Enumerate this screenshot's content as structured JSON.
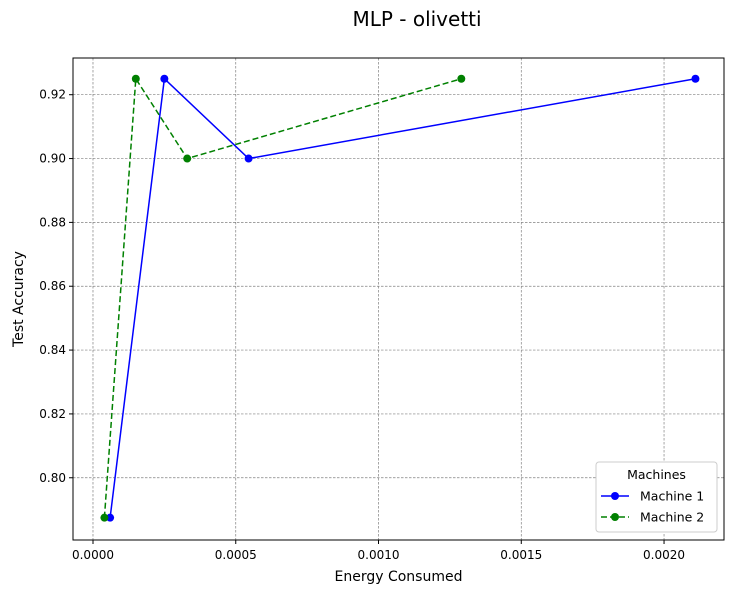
{
  "chart_data": {
    "type": "line",
    "title": "MLP - olivetti",
    "xlabel": "Energy Consumed",
    "ylabel": "Test Accuracy",
    "xlim": [
      -7e-05,
      0.00221
    ],
    "ylim": [
      0.7805,
      0.9315
    ],
    "xticks": [
      0.0,
      0.0005,
      0.001,
      0.0015,
      0.002
    ],
    "xtick_labels": [
      "0.0000",
      "0.0005",
      "0.0010",
      "0.0015",
      "0.0020"
    ],
    "yticks": [
      0.8,
      0.82,
      0.84,
      0.86,
      0.88,
      0.9,
      0.92
    ],
    "ytick_labels": [
      "0.80",
      "0.82",
      "0.84",
      "0.86",
      "0.88",
      "0.90",
      "0.92"
    ],
    "grid": true,
    "legend": {
      "title": "Machines",
      "position": "lower-right"
    },
    "series": [
      {
        "name": "Machine 1",
        "color": "#0000ff",
        "linestyle": "solid",
        "marker": "circle",
        "x": [
          6e-05,
          0.00025,
          0.000545,
          0.00211
        ],
        "y": [
          0.7875,
          0.925,
          0.9,
          0.925
        ]
      },
      {
        "name": "Machine 2",
        "color": "#008000",
        "linestyle": "dashed",
        "marker": "circle",
        "x": [
          4e-05,
          0.00015,
          0.00033,
          0.00129
        ],
        "y": [
          0.7875,
          0.925,
          0.9,
          0.925
        ]
      }
    ]
  }
}
